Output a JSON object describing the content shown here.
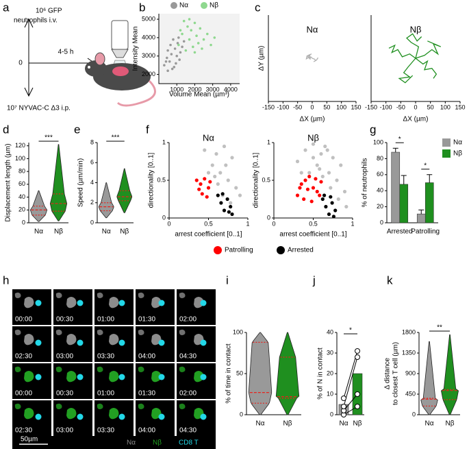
{
  "panel_labels": [
    "a",
    "b",
    "c",
    "d",
    "e",
    "f",
    "g",
    "h",
    "i",
    "j",
    "k"
  ],
  "diagram_a": {
    "injection_top": [
      "10⁶ GFP",
      "neutrophils i.v."
    ],
    "time_zero": "0",
    "duration": "4-5 h",
    "injection_bottom": "10⁷  NYVAC-C Δ3 i.p."
  },
  "timelapse_h": {
    "rows": [
      [
        "00:00",
        "00:30",
        "01:00",
        "01:30",
        "02:00"
      ],
      [
        "02:30",
        "03:00",
        "03:30",
        "04:00",
        "04:30"
      ],
      [
        "00:00",
        "00:30",
        "01:00",
        "01:30",
        "02:00"
      ],
      [
        "02:30",
        "03:00",
        "03:30",
        "04:00",
        "04:30"
      ]
    ],
    "legend": [
      {
        "label": "Nα",
        "color": "#8c8c8c"
      },
      {
        "label": "Nβ",
        "color": "#22a022"
      },
      {
        "label": "CD8 T",
        "color": "#22d8e8"
      }
    ],
    "scale_bar": "50µm"
  },
  "chart_data": [
    {
      "type": "scatter",
      "xlabel": "Volume Mean (µm³)",
      "ylabel": "Intensity Mean",
      "xlim": [
        0,
        4500
      ],
      "ylim": [
        1500,
        5300
      ],
      "xticks": [
        1000,
        2000,
        3000,
        4000
      ],
      "yticks": [
        2000,
        3000,
        4000,
        5000
      ],
      "series": [
        {
          "name": "Nα",
          "color": "#999999",
          "x": [
            300,
            450,
            500,
            600,
            650,
            700,
            800,
            850,
            900,
            1000,
            1050,
            1100,
            1200,
            1300,
            1400,
            500,
            750,
            950,
            1150,
            400
          ],
          "values": [
            2500,
            2900,
            3300,
            2700,
            3600,
            3100,
            3900,
            2400,
            3400,
            3000,
            3700,
            4000,
            3200,
            3500,
            3800,
            2200,
            2300,
            2600,
            2800,
            2700
          ]
        },
        {
          "name": "Nβ",
          "color": "#8fd88f",
          "x": [
            1100,
            1300,
            1500,
            1600,
            1700,
            1800,
            1900,
            2000,
            2100,
            2200,
            2300,
            2500,
            2700,
            2900,
            3100,
            1400,
            1700,
            2400,
            1200,
            2000
          ],
          "values": [
            3600,
            4200,
            3300,
            4600,
            3900,
            4400,
            3500,
            4800,
            4100,
            3700,
            4500,
            3900,
            4200,
            3600,
            4000,
            4900,
            5000,
            3400,
            4400,
            3200
          ]
        }
      ]
    },
    {
      "type": "track",
      "title": "Nα",
      "ylabel": "ΔY (µm)",
      "xlabel": "ΔX (µm)",
      "xlim": [
        -150,
        150
      ],
      "ylim": [
        -150,
        150
      ],
      "xticks": [
        -150,
        -100,
        -50,
        0,
        50,
        100,
        150
      ],
      "series": [
        {
          "color": "#b0b0b0",
          "x": [
            0,
            -5,
            -10,
            -8,
            -15,
            -6
          ],
          "values": [
            0,
            5,
            2,
            10,
            6,
            -4
          ]
        },
        {
          "color": "#b0b0b0",
          "x": [
            0,
            8,
            12,
            5,
            15,
            20
          ],
          "values": [
            0,
            -3,
            -8,
            -12,
            -6,
            2
          ]
        },
        {
          "color": "#b0b0b0",
          "x": [
            -5,
            -12,
            -20,
            -18,
            -10,
            -2
          ],
          "values": [
            0,
            3,
            -2,
            8,
            12,
            15
          ]
        }
      ]
    },
    {
      "type": "track",
      "title": "Nβ",
      "xlabel": "ΔX (µm)",
      "xlim": [
        -150,
        150
      ],
      "ylim": [
        -150,
        150
      ],
      "xticks": [
        -150,
        -100,
        -50,
        0,
        50,
        100,
        150
      ],
      "series": [
        {
          "color": "#1f8f1f",
          "x": [
            0,
            -20,
            -45,
            -60,
            -80,
            -70,
            -90
          ],
          "values": [
            0,
            15,
            5,
            30,
            20,
            45,
            35
          ]
        },
        {
          "color": "#1f8f1f",
          "x": [
            0,
            25,
            40,
            30,
            55,
            70,
            60
          ],
          "values": [
            0,
            -20,
            -10,
            -40,
            -35,
            -55,
            -70
          ]
        },
        {
          "color": "#1f8f1f",
          "x": [
            0,
            10,
            -15,
            -30,
            -10,
            5,
            20
          ],
          "values": [
            0,
            40,
            55,
            70,
            85,
            60,
            75
          ]
        },
        {
          "color": "#1f8f1f",
          "x": [
            0,
            30,
            55,
            75,
            60,
            85,
            40
          ],
          "values": [
            0,
            10,
            30,
            15,
            50,
            40,
            60
          ]
        },
        {
          "color": "#1f8f1f",
          "x": [
            0,
            -25,
            -40,
            -20,
            -55,
            -35,
            -10
          ],
          "values": [
            0,
            -30,
            -50,
            -65,
            -70,
            -85,
            -60
          ]
        }
      ]
    },
    {
      "type": "violin",
      "ylabel": "Displacement length (µm)",
      "ylim": [
        0,
        125
      ],
      "yticks": [
        0,
        20,
        40,
        60,
        80,
        100,
        120
      ],
      "categories": [
        "Nα",
        "Nβ"
      ],
      "colors": [
        "#999999",
        "#1f8f1f"
      ],
      "min": [
        2,
        3
      ],
      "q1": [
        12,
        18
      ],
      "median": [
        20,
        30
      ],
      "q3": [
        26,
        45
      ],
      "max": [
        50,
        122
      ],
      "significance": "***"
    },
    {
      "type": "violin",
      "ylabel": "Speed (µm/min)",
      "ylim": [
        0,
        8
      ],
      "yticks": [
        0,
        2,
        4,
        6,
        8
      ],
      "categories": [
        "Nα",
        "Nβ"
      ],
      "colors": [
        "#999999",
        "#1f8f1f"
      ],
      "min": [
        0.5,
        1.0
      ],
      "q1": [
        1.2,
        2.2
      ],
      "median": [
        1.6,
        2.6
      ],
      "q3": [
        2.0,
        3.2
      ],
      "max": [
        4.0,
        5.4
      ],
      "significance": "***"
    },
    {
      "type": "scatter",
      "title": "Nα",
      "xlabel": "arrest coefficient [0..1]",
      "ylabel": "directionality [0..1]",
      "xlim": [
        0,
        1
      ],
      "ylim": [
        0,
        1
      ],
      "xticks": [
        0,
        0.5,
        1
      ],
      "yticks": [
        0,
        0.5,
        1
      ],
      "series": [
        {
          "color": "#c0c0c0",
          "x": [
            0.45,
            0.55,
            0.6,
            0.65,
            0.7,
            0.75,
            0.8,
            0.85,
            0.5,
            0.62,
            0.72,
            0.9,
            0.78,
            0.68,
            0.58
          ],
          "values": [
            0.9,
            0.7,
            0.85,
            0.6,
            0.95,
            0.5,
            0.8,
            0.4,
            0.6,
            0.45,
            0.7,
            0.3,
            0.2,
            0.3,
            0.55
          ]
        },
        {
          "name": "Patrolling",
          "color": "#ff0000",
          "x": [
            0.35,
            0.4,
            0.45,
            0.5,
            0.42,
            0.48,
            0.38,
            0.52
          ],
          "values": [
            0.5,
            0.45,
            0.52,
            0.4,
            0.32,
            0.28,
            0.38,
            0.48
          ]
        },
        {
          "name": "Arrested",
          "color": "#000000",
          "x": [
            0.62,
            0.66,
            0.7,
            0.74,
            0.78,
            0.8,
            0.68,
            0.76
          ],
          "values": [
            0.3,
            0.2,
            0.1,
            0.25,
            0.15,
            0.05,
            0.32,
            0.08
          ]
        }
      ]
    },
    {
      "type": "scatter",
      "title": "Nβ",
      "xlabel": "arrest coefficient [0..1]",
      "ylabel": "directionality [0..1]",
      "xlim": [
        0,
        1
      ],
      "ylim": [
        0,
        1
      ],
      "xticks": [
        0,
        0.5,
        1
      ],
      "yticks": [
        0,
        0.5,
        1
      ],
      "series": [
        {
          "color": "#c0c0c0",
          "x": [
            0.3,
            0.4,
            0.45,
            0.5,
            0.55,
            0.6,
            0.65,
            0.7,
            0.75,
            0.8,
            0.85,
            0.9,
            0.35,
            0.5,
            0.62,
            0.72,
            0.82,
            0.58,
            0.68,
            0.92
          ],
          "values": [
            0.75,
            0.9,
            0.6,
            0.98,
            0.7,
            0.85,
            0.95,
            0.6,
            0.8,
            0.5,
            0.7,
            0.35,
            0.6,
            0.8,
            0.55,
            0.4,
            0.25,
            0.65,
            0.9,
            0.15
          ]
        },
        {
          "color": "#ff0000",
          "x": [
            0.3,
            0.35,
            0.4,
            0.45,
            0.5,
            0.55,
            0.6,
            0.38,
            0.43,
            0.48,
            0.53,
            0.33,
            0.58
          ],
          "values": [
            0.3,
            0.45,
            0.5,
            0.55,
            0.4,
            0.35,
            0.48,
            0.25,
            0.38,
            0.22,
            0.52,
            0.4,
            0.3
          ]
        },
        {
          "color": "#000000",
          "x": [
            0.62,
            0.66,
            0.7,
            0.74,
            0.78,
            0.64,
            0.72,
            0.76
          ],
          "values": [
            0.25,
            0.15,
            0.05,
            0.2,
            0.1,
            0.3,
            0.28,
            0.02
          ]
        }
      ]
    },
    {
      "type": "bar",
      "ylabel": "% of neutrophils",
      "ylim": [
        0,
        100
      ],
      "yticks": [
        0,
        20,
        40,
        60,
        80,
        100
      ],
      "categories": [
        "Arrested",
        "Patrolling"
      ],
      "series": [
        {
          "name": "Nα",
          "color": "#999999",
          "values": [
            88,
            11
          ],
          "errors": [
            5,
            5
          ]
        },
        {
          "name": "Nβ",
          "color": "#1f8f1f",
          "values": [
            48,
            50
          ],
          "errors": [
            11,
            10
          ]
        }
      ],
      "significance": [
        "*",
        "*"
      ]
    },
    {
      "type": "violin",
      "ylabel": "% of time in contact",
      "ylim": [
        0,
        100
      ],
      "yticks": [
        0,
        50,
        100
      ],
      "categories": [
        "Nα",
        "Nβ"
      ],
      "colors": [
        "#999999",
        "#1f8f1f"
      ],
      "min": [
        0,
        0
      ],
      "q1": [
        14,
        20
      ],
      "median": [
        27,
        22
      ],
      "q3": [
        88,
        70
      ],
      "max": [
        100,
        100
      ]
    },
    {
      "type": "bar_dots",
      "ylabel": "% of N in contact",
      "ylim": [
        0,
        40
      ],
      "yticks": [
        0,
        10,
        20,
        30,
        40
      ],
      "categories": [
        "Nα",
        "Nβ"
      ],
      "colors": [
        "#999999",
        "#1f8f1f"
      ],
      "values": [
        5,
        20
      ],
      "dots": [
        [
          0,
          2,
          4,
          8
        ],
        [
          4,
          10,
          28,
          31
        ]
      ],
      "significance": "*"
    },
    {
      "type": "violin",
      "ylabel": [
        "Δ distance",
        "to closest T cell (µm)"
      ],
      "ylim": [
        0,
        1800
      ],
      "yticks": [
        0,
        450,
        900,
        1350,
        1800
      ],
      "categories": [
        "Nα",
        "Nβ"
      ],
      "colors": [
        "#999999",
        "#1f8f1f"
      ],
      "min": [
        0,
        0
      ],
      "q1": [
        190,
        330
      ],
      "median": [
        340,
        530
      ],
      "q3": [
        360,
        550
      ],
      "max": [
        1600,
        1750
      ],
      "significance": "**"
    }
  ]
}
